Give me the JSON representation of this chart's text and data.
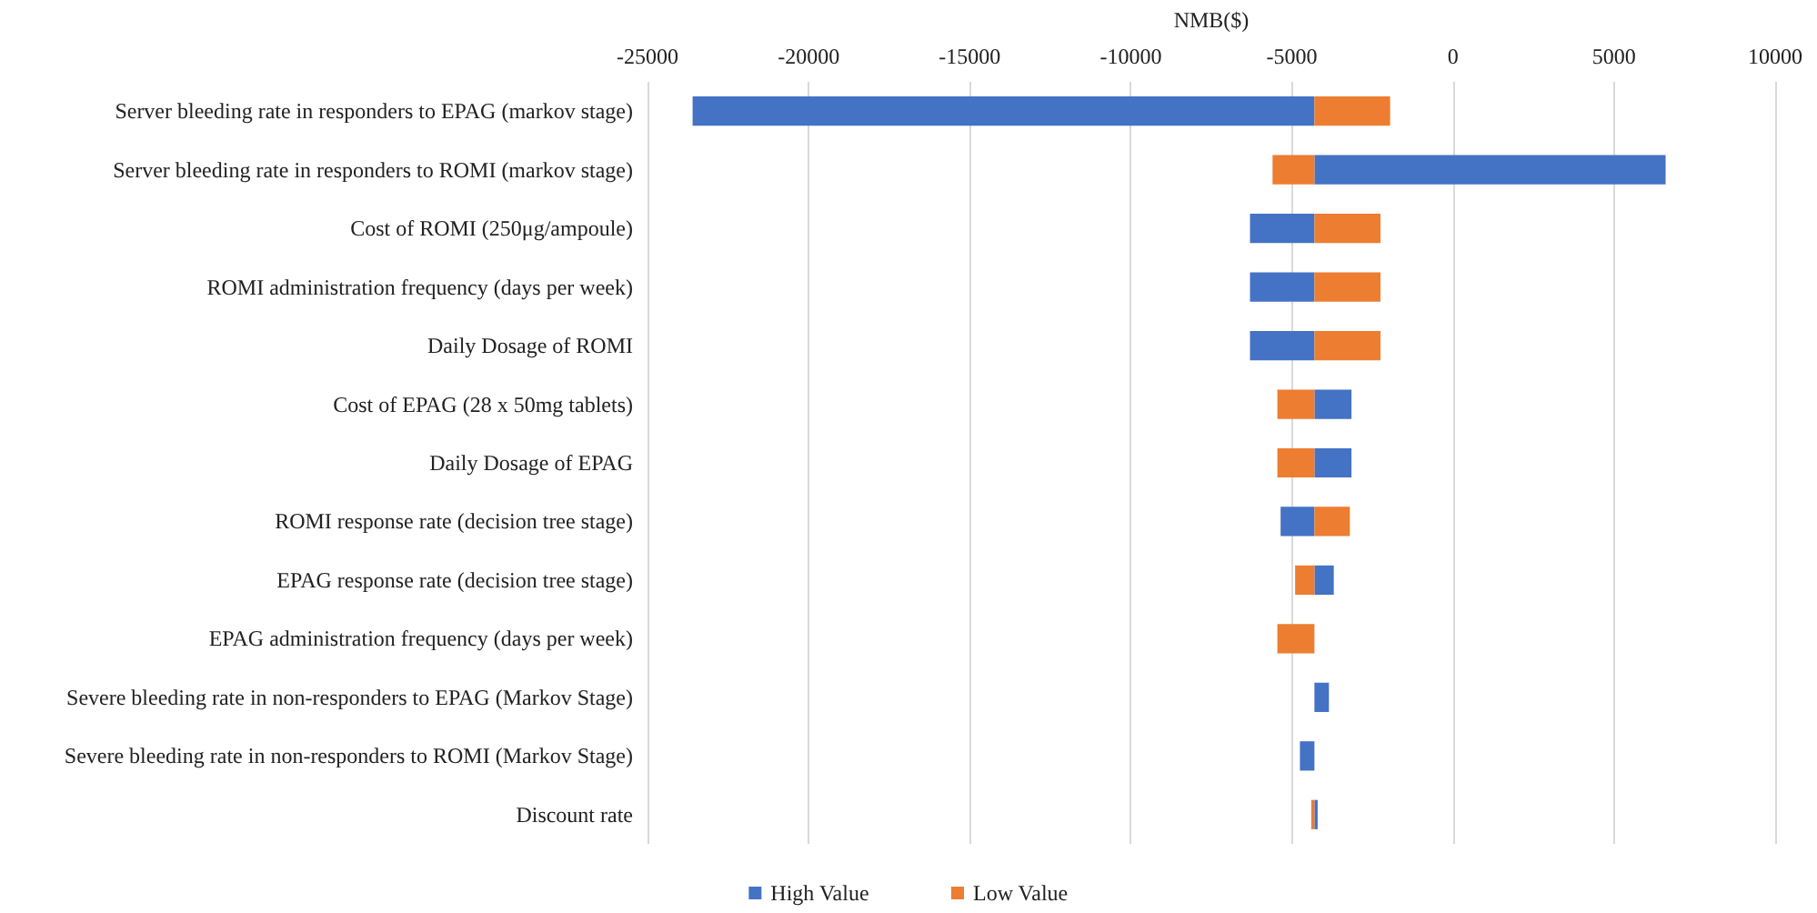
{
  "chart_data": {
    "type": "bar",
    "orientation": "horizontal",
    "xlabel": "NMB($)",
    "categories": [
      "Server bleeding rate in responders to EPAG (markov stage)",
      "Server bleeding rate in responders to ROMI (markov stage)",
      "Cost of ROMI (250μg/ampoule)",
      "ROMI administration frequency (days per week)",
      "Daily Dosage of ROMI",
      "Cost of EPAG (28 x 50mg tablets)",
      "Daily Dosage of EPAG",
      "ROMI response rate (decision tree stage)",
      "EPAG response rate (decision tree stage)",
      "EPAG administration frequency (days per week)",
      "Severe bleeding rate in non-responders to EPAG (Markov Stage)",
      "Severe bleeding rate in non-responders to ROMI (Markov Stage)",
      "Discount rate"
    ],
    "series": [
      {
        "name": "High Value",
        "color": "#4472c4",
        "base": [
          -4300,
          -4300,
          -4300,
          -4300,
          -4300,
          -4300,
          -4300,
          -4300,
          -4300,
          null,
          -4300,
          -4300,
          -4300
        ],
        "values": [
          -19300,
          10900,
          -2000,
          -2000,
          -2000,
          1150,
          1150,
          -1050,
          600,
          null,
          450,
          -450,
          100
        ]
      },
      {
        "name": "Low Value",
        "color": "#ed7d31",
        "base": [
          -4300,
          -4300,
          -4300,
          -4300,
          -4300,
          -4300,
          -4300,
          -4300,
          -4300,
          -4300,
          null,
          null,
          -4300
        ],
        "values": [
          2350,
          -1300,
          2050,
          2050,
          2050,
          -1150,
          -1150,
          1100,
          -600,
          -1150,
          null,
          null,
          -100
        ]
      }
    ],
    "xlim": [
      -25000,
      10000
    ],
    "xticks": [
      -25000,
      -20000,
      -15000,
      -10000,
      -5000,
      0,
      5000,
      10000
    ],
    "grid": "x",
    "legend": "bottom"
  }
}
